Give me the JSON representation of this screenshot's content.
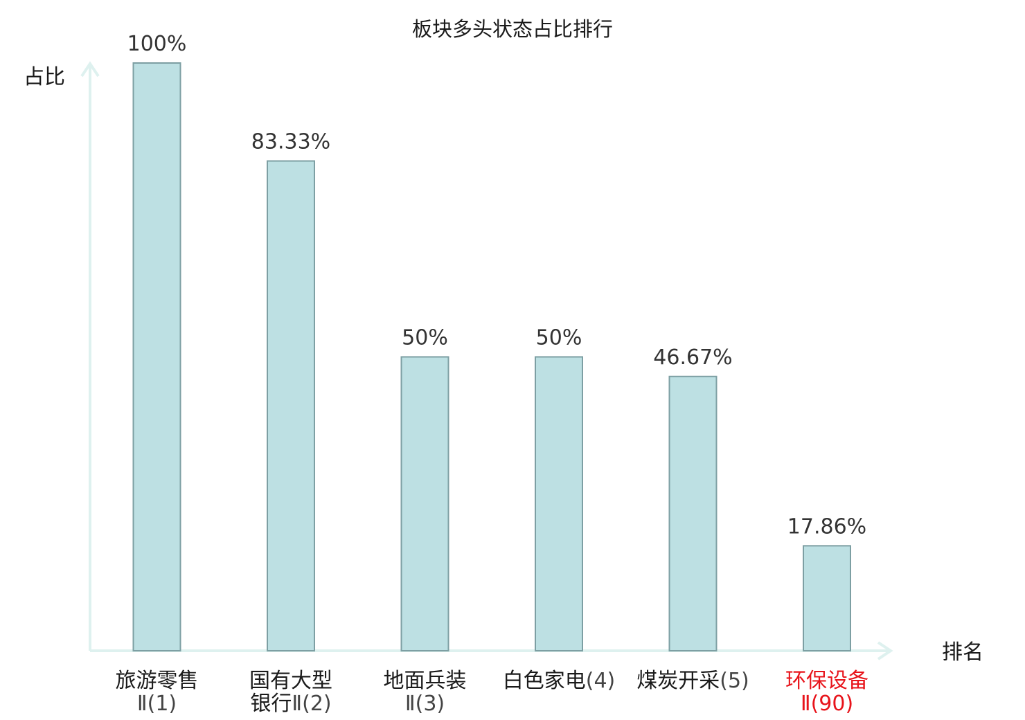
{
  "chart_data": {
    "type": "bar",
    "title": "板块多头状态占比排行",
    "xlabel": "排名",
    "ylabel": "占比",
    "ylim": [
      0,
      100
    ],
    "unit": "%",
    "categories": [
      {
        "name": "旅游零售",
        "suffix": "Ⅱ(1)",
        "value": 100,
        "label": "100%",
        "highlight": false
      },
      {
        "name": "国有大型",
        "name2": "银行",
        "suffix": "Ⅱ(2)",
        "value": 83.33,
        "label": "83.33%",
        "highlight": false
      },
      {
        "name": "地面兵装",
        "suffix": "Ⅱ(3)",
        "value": 50,
        "label": "50%",
        "highlight": false
      },
      {
        "name": "白色家电",
        "suffix": "(4)",
        "value": 50,
        "label": "50%",
        "highlight": false
      },
      {
        "name": "煤炭开采",
        "suffix": "(5)",
        "value": 46.67,
        "label": "46.67%",
        "highlight": false
      },
      {
        "name": "环保设备",
        "suffix": "Ⅱ(90)",
        "value": 17.86,
        "label": "17.86%",
        "highlight": true
      }
    ],
    "grid": false,
    "colors": {
      "bar_fill": "#bde0e3",
      "bar_stroke": "#7d9fa3",
      "axis": "#def1ef",
      "text": "#1a1a1a",
      "value_text": "#333333",
      "highlight": "#e8141b"
    }
  }
}
